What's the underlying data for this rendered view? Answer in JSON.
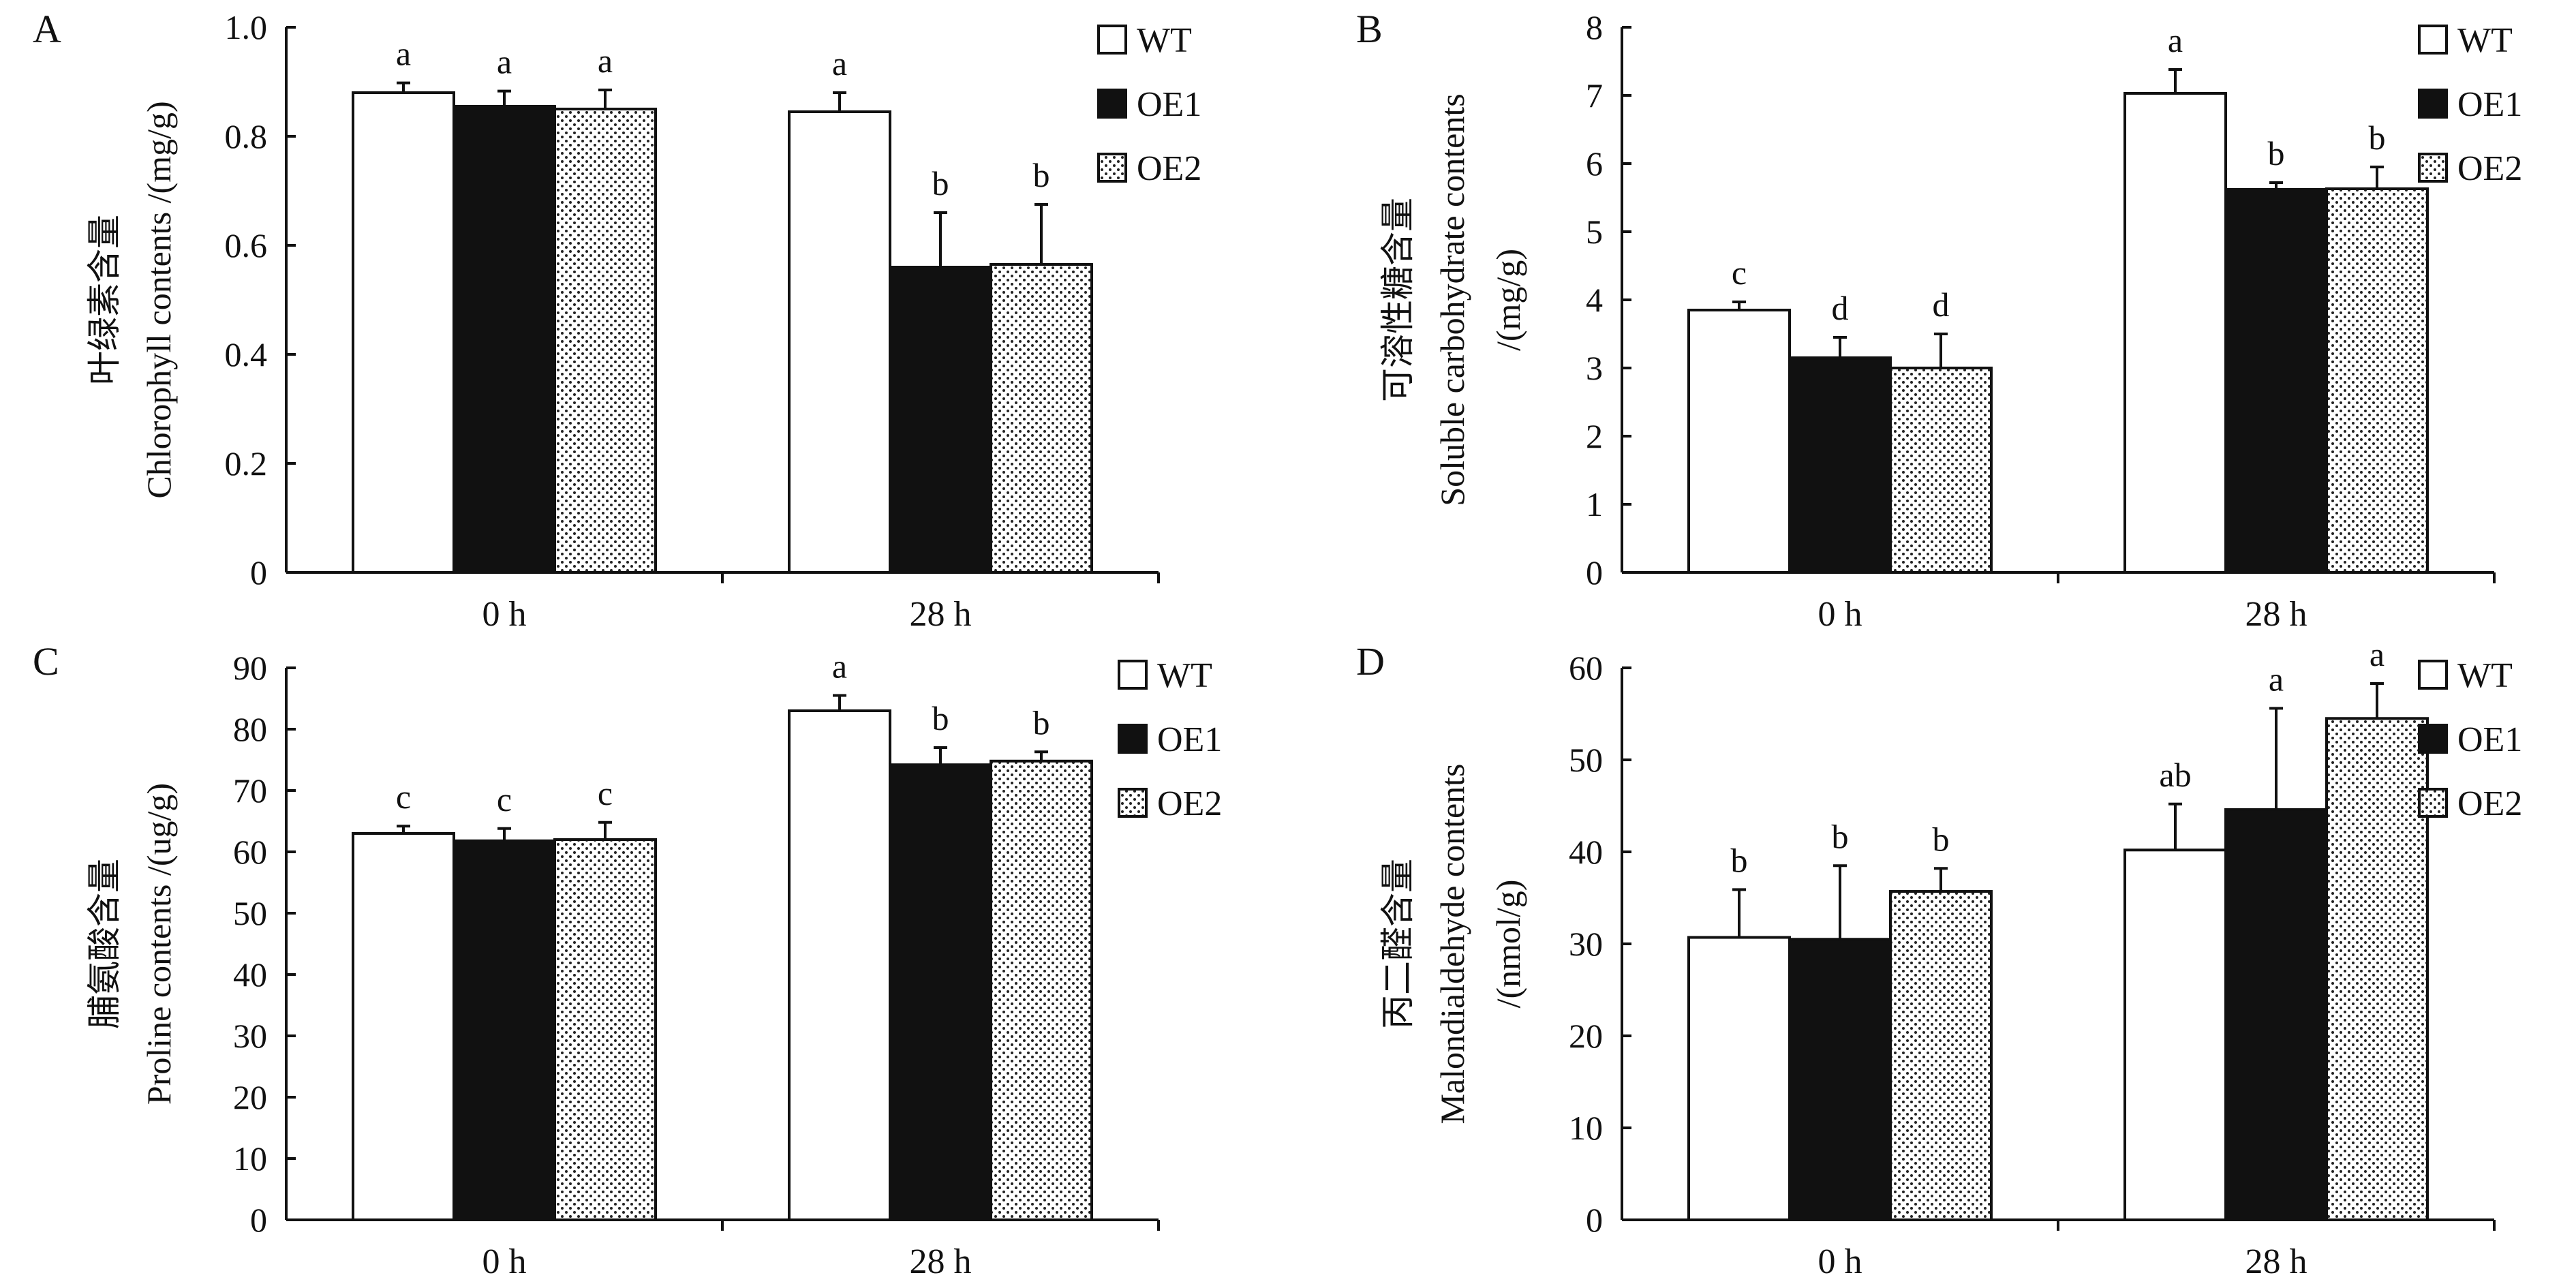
{
  "colors": {
    "WT": "#ffffff",
    "OE1": "#111111",
    "OE2": "dotted",
    "axis": "#111111"
  },
  "chart_data": [
    {
      "type": "bar",
      "panel": "A",
      "ylabel_cn": "叶绿素含量",
      "ylabel_en": "Chlorophyll contents /(mg/g)",
      "categories": [
        "0 h",
        "28 h"
      ],
      "ylim": [
        0,
        1.0
      ],
      "yticks": [
        "0",
        "0.2",
        "0.4",
        "0.6",
        "0.8",
        "1.0"
      ],
      "legend_position": "top-right",
      "series": [
        {
          "name": "WT",
          "values": [
            0.88,
            0.845
          ],
          "errors": [
            0.018,
            0.035
          ],
          "labels": [
            "a",
            "a"
          ]
        },
        {
          "name": "OE1",
          "values": [
            0.855,
            0.56
          ],
          "errors": [
            0.028,
            0.1
          ],
          "labels": [
            "a",
            "b"
          ]
        },
        {
          "name": "OE2",
          "values": [
            0.85,
            0.565
          ],
          "errors": [
            0.035,
            0.11
          ],
          "labels": [
            "a",
            "b"
          ]
        }
      ]
    },
    {
      "type": "bar",
      "panel": "B",
      "ylabel_cn": "可溶性糖含量",
      "ylabel_en": "Soluble carbohydrate contents",
      "ylabel_en2": "/(mg/g)",
      "categories": [
        "0 h",
        "28 h"
      ],
      "ylim": [
        0,
        8
      ],
      "yticks": [
        "0",
        "1",
        "2",
        "3",
        "4",
        "5",
        "6",
        "7",
        "8"
      ],
      "legend_position": "top-right",
      "series": [
        {
          "name": "WT",
          "values": [
            3.85,
            7.03
          ],
          "errors": [
            0.12,
            0.35
          ],
          "labels": [
            "c",
            "a"
          ]
        },
        {
          "name": "OE1",
          "values": [
            3.15,
            5.62
          ],
          "errors": [
            0.3,
            0.1
          ],
          "labels": [
            "d",
            "b"
          ]
        },
        {
          "name": "OE2",
          "values": [
            3.0,
            5.63
          ],
          "errors": [
            0.5,
            0.32
          ],
          "labels": [
            "d",
            "b"
          ]
        }
      ]
    },
    {
      "type": "bar",
      "panel": "C",
      "ylabel_cn": "脯氨酸含量",
      "ylabel_en": "Proline contents /(ug/g)",
      "categories": [
        "0 h",
        "28 h"
      ],
      "ylim": [
        0,
        90
      ],
      "yticks": [
        "0",
        "10",
        "20",
        "30",
        "40",
        "50",
        "60",
        "70",
        "80",
        "90"
      ],
      "legend_position": "top-right",
      "series": [
        {
          "name": "WT",
          "values": [
            63.0,
            83.0
          ],
          "errors": [
            1.2,
            2.5
          ],
          "labels": [
            "c",
            "a"
          ]
        },
        {
          "name": "OE1",
          "values": [
            61.8,
            74.2
          ],
          "errors": [
            2.0,
            2.8
          ],
          "labels": [
            "c",
            "b"
          ]
        },
        {
          "name": "OE2",
          "values": [
            62.0,
            74.8
          ],
          "errors": [
            2.8,
            1.5
          ],
          "labels": [
            "c",
            "b"
          ]
        }
      ]
    },
    {
      "type": "bar",
      "panel": "D",
      "ylabel_cn": "丙二醛含量",
      "ylabel_en": "Malondialdehyde contents",
      "ylabel_en2": "/(nmol/g)",
      "categories": [
        "0 h",
        "28 h"
      ],
      "ylim": [
        0,
        60
      ],
      "yticks": [
        "0",
        "10",
        "20",
        "30",
        "40",
        "50",
        "60"
      ],
      "legend_position": "top-right",
      "series": [
        {
          "name": "WT",
          "values": [
            30.7,
            40.2
          ],
          "errors": [
            5.2,
            5.0
          ],
          "labels": [
            "b",
            "ab"
          ]
        },
        {
          "name": "OE1",
          "values": [
            30.5,
            44.6
          ],
          "errors": [
            8.0,
            11.0
          ],
          "labels": [
            "b",
            "a"
          ]
        },
        {
          "name": "OE2",
          "values": [
            35.7,
            54.5
          ],
          "errors": [
            2.5,
            3.8
          ],
          "labels": [
            "b",
            "a"
          ]
        }
      ]
    }
  ]
}
